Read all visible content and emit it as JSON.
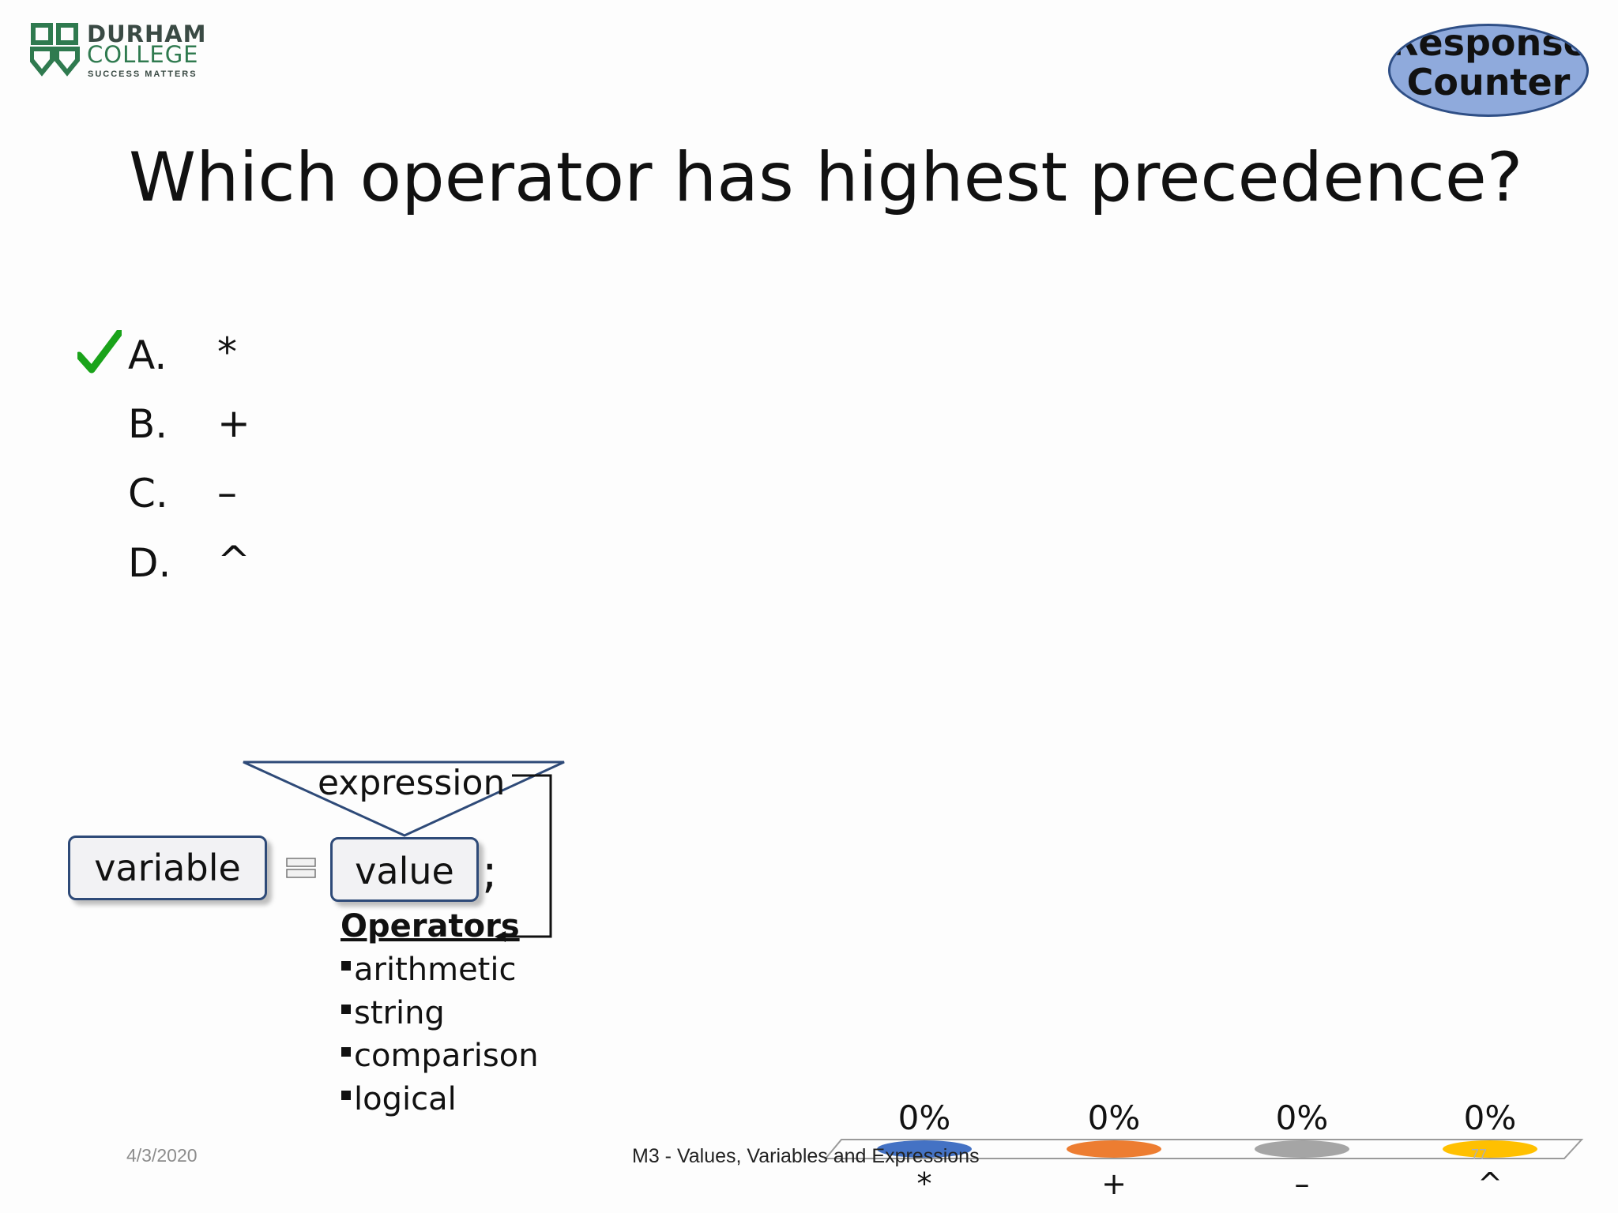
{
  "logo": {
    "line1": "DURHAM",
    "line2": "COLLEGE",
    "tagline": "SUCCESS MATTERS",
    "color": "#2f7a4f"
  },
  "response_counter": {
    "line1": "Response",
    "line2": "Counter",
    "fill": "#8faadc",
    "border": "#2f4f86"
  },
  "question": "Which operator has highest precedence?",
  "answers": [
    {
      "letter": "A.",
      "symbol": "*",
      "correct": true
    },
    {
      "letter": "B.",
      "symbol": "+",
      "correct": false
    },
    {
      "letter": "C.",
      "symbol": "–",
      "correct": false
    },
    {
      "letter": "D.",
      "symbol": "^",
      "correct": false
    }
  ],
  "diagram": {
    "expression_label": "expression",
    "variable_label": "variable",
    "value_label": "value",
    "semicolon": ";",
    "operators_title": "Operators",
    "operators": [
      "arithmetic",
      "string",
      "comparison",
      "logical"
    ]
  },
  "footer": {
    "date": "4/3/2020",
    "title": "M3 - Values, Variables and Expressions",
    "page": "77"
  },
  "chart_data": {
    "type": "bar",
    "categories": [
      "*",
      "+",
      "–",
      "^"
    ],
    "values": [
      0,
      0,
      0,
      0
    ],
    "value_labels": [
      "0%",
      "0%",
      "0%",
      "0%"
    ],
    "colors": [
      "#4472c4",
      "#ed7d31",
      "#a5a5a5",
      "#ffc000"
    ],
    "ylim": [
      0,
      100
    ]
  }
}
